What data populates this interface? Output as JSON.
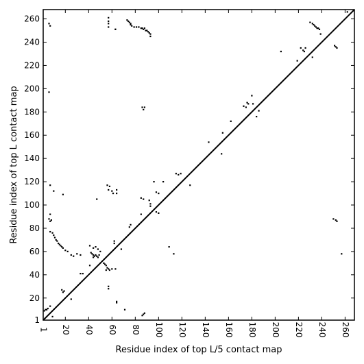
{
  "chart_data": {
    "type": "scatter",
    "title": "",
    "xlabel": "Residue index of top L/5 contact map",
    "ylabel": "Residue index of top L contact map",
    "xlim": [
      1,
      268
    ],
    "ylim": [
      1,
      268
    ],
    "xticks": [
      1,
      20,
      40,
      60,
      80,
      100,
      120,
      140,
      160,
      180,
      200,
      220,
      240,
      260
    ],
    "yticks": [
      1,
      20,
      40,
      60,
      80,
      100,
      120,
      140,
      160,
      180,
      200,
      220,
      240,
      260
    ],
    "grid": false,
    "legend": "none",
    "colors": {
      "points": "#000000",
      "diagonal": "#000000",
      "axes": "#000000"
    },
    "diagonal": {
      "from": [
        1,
        1
      ],
      "to": [
        268,
        268
      ]
    },
    "upper_points": [
      [
        57,
        261
      ],
      [
        57,
        258
      ],
      [
        57,
        256
      ],
      [
        57,
        253
      ],
      [
        63,
        251
      ],
      [
        63,
        251
      ],
      [
        73,
        259
      ],
      [
        74,
        258
      ],
      [
        75,
        257
      ],
      [
        76,
        256
      ],
      [
        76,
        255
      ],
      [
        77,
        254
      ],
      [
        79,
        253
      ],
      [
        81,
        253
      ],
      [
        83,
        253
      ],
      [
        85,
        252
      ],
      [
        86,
        252
      ],
      [
        87,
        251
      ],
      [
        88,
        252
      ],
      [
        89,
        250
      ],
      [
        90,
        250
      ],
      [
        91,
        249
      ],
      [
        92,
        248
      ],
      [
        93,
        247
      ],
      [
        93,
        245
      ],
      [
        86,
        184
      ],
      [
        87,
        182
      ],
      [
        88,
        184
      ],
      [
        96,
        120
      ],
      [
        98,
        111
      ],
      [
        100,
        110
      ],
      [
        100,
        93
      ],
      [
        98,
        94
      ],
      [
        104,
        120
      ],
      [
        85,
        106
      ],
      [
        87,
        105
      ],
      [
        92,
        104
      ],
      [
        93,
        101
      ],
      [
        93,
        99
      ],
      [
        109,
        64
      ],
      [
        113,
        58
      ],
      [
        115,
        127
      ],
      [
        117,
        126
      ],
      [
        119,
        127
      ],
      [
        127,
        117
      ],
      [
        143,
        154
      ],
      [
        154,
        144
      ],
      [
        155,
        162
      ],
      [
        162,
        172
      ],
      [
        173,
        185
      ],
      [
        175,
        184
      ],
      [
        176,
        188
      ],
      [
        177,
        187
      ],
      [
        180,
        194
      ],
      [
        181,
        187
      ],
      [
        184,
        176
      ],
      [
        186,
        181
      ],
      [
        205,
        232
      ],
      [
        219,
        224
      ],
      [
        222,
        235
      ],
      [
        224,
        233
      ],
      [
        225,
        232
      ],
      [
        226,
        235
      ],
      [
        230,
        257
      ],
      [
        232,
        256
      ],
      [
        233,
        255
      ],
      [
        234,
        254
      ],
      [
        235,
        253
      ],
      [
        236,
        252
      ],
      [
        237,
        252
      ],
      [
        238,
        251
      ],
      [
        239,
        247
      ],
      [
        232,
        227
      ],
      [
        251,
        237
      ],
      [
        252,
        236
      ],
      [
        253,
        235
      ],
      [
        250,
        88
      ],
      [
        252,
        87
      ],
      [
        253,
        86
      ],
      [
        257,
        58
      ],
      [
        262,
        266
      ]
    ],
    "lower_points": [
      [
        6,
        256
      ],
      [
        7,
        254
      ],
      [
        6,
        197
      ],
      [
        7,
        117
      ],
      [
        10,
        112
      ],
      [
        18,
        109
      ],
      [
        6,
        88
      ],
      [
        7,
        86
      ],
      [
        7,
        92
      ],
      [
        8,
        87
      ],
      [
        7,
        77
      ],
      [
        9,
        76
      ],
      [
        10,
        74
      ],
      [
        11,
        72
      ],
      [
        12,
        70
      ],
      [
        13,
        69
      ],
      [
        14,
        67
      ],
      [
        15,
        66
      ],
      [
        16,
        65
      ],
      [
        17,
        64
      ],
      [
        18,
        63
      ],
      [
        20,
        61
      ],
      [
        22,
        60
      ],
      [
        25,
        57
      ],
      [
        27,
        56
      ],
      [
        30,
        58
      ],
      [
        33,
        57
      ],
      [
        2,
        9
      ],
      [
        3,
        10
      ],
      [
        4,
        10
      ],
      [
        5,
        11
      ],
      [
        7,
        13
      ],
      [
        9,
        4
      ],
      [
        17,
        27
      ],
      [
        18,
        25
      ],
      [
        19,
        26
      ],
      [
        25,
        19
      ],
      [
        33,
        41
      ],
      [
        35,
        41
      ],
      [
        41,
        65
      ],
      [
        42,
        59
      ],
      [
        43,
        58
      ],
      [
        44,
        57
      ],
      [
        44,
        55
      ],
      [
        45,
        56
      ],
      [
        46,
        57
      ],
      [
        47,
        56
      ],
      [
        48,
        55
      ],
      [
        49,
        57
      ],
      [
        50,
        60
      ],
      [
        48,
        62
      ],
      [
        44,
        63
      ],
      [
        46,
        64
      ],
      [
        41,
        48
      ],
      [
        47,
        105
      ],
      [
        53,
        50
      ],
      [
        54,
        49
      ],
      [
        55,
        48
      ],
      [
        56,
        46
      ],
      [
        57,
        45
      ],
      [
        58,
        44
      ],
      [
        55,
        44
      ],
      [
        60,
        45
      ],
      [
        63,
        45
      ],
      [
        57,
        30
      ],
      [
        57,
        28
      ],
      [
        56,
        117
      ],
      [
        58,
        116
      ],
      [
        57,
        113
      ],
      [
        60,
        112
      ],
      [
        61,
        110
      ],
      [
        64,
        110
      ],
      [
        64,
        113
      ],
      [
        62,
        69
      ],
      [
        62,
        67
      ],
      [
        68,
        62
      ],
      [
        64,
        17
      ],
      [
        64,
        16
      ],
      [
        71,
        10
      ],
      [
        75,
        81
      ],
      [
        76,
        83
      ],
      [
        85,
        92
      ],
      [
        86,
        5
      ],
      [
        87,
        6
      ],
      [
        88,
        7
      ]
    ]
  }
}
